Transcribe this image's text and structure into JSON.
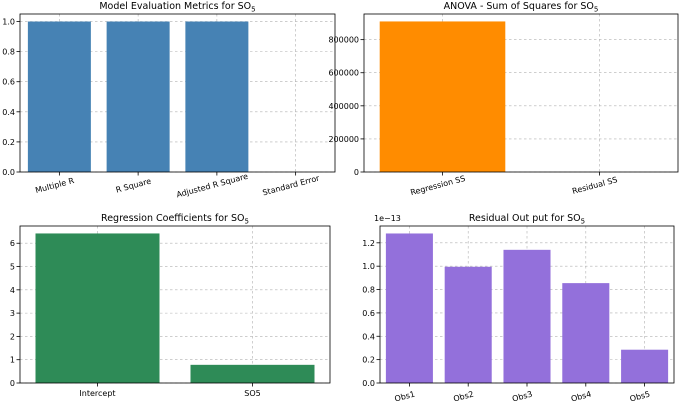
{
  "chart_data": [
    {
      "type": "bar",
      "title": "Model Evaluation Metrics for SO",
      "title_sub": "5",
      "categories": [
        "Multiple R",
        "R Square",
        "Adjusted R Square",
        "Standard Error"
      ],
      "values": [
        1.0,
        1.0,
        1.0,
        0.0
      ],
      "ylim": [
        0,
        1.05
      ],
      "yticks": [
        0.0,
        0.2,
        0.4,
        0.6,
        0.8,
        1.0
      ],
      "ytick_labels": [
        "0.0",
        "0.2",
        "0.4",
        "0.6",
        "0.8",
        "1.0"
      ],
      "rotate_xlabels": true,
      "grid": true,
      "color": "#4682b4"
    },
    {
      "type": "bar",
      "title": "ANOVA - Sum of Squares for SO",
      "title_sub": "5",
      "categories": [
        "Regression SS",
        "Residual SS"
      ],
      "values": [
        910000,
        0
      ],
      "ylim": [
        0,
        955000
      ],
      "yticks": [
        0,
        200000,
        400000,
        600000,
        800000
      ],
      "ytick_labels": [
        "0",
        "200000",
        "400000",
        "600000",
        "800000"
      ],
      "rotate_xlabels": true,
      "grid": true,
      "color": "#ff8c00"
    },
    {
      "type": "bar",
      "title": "Regression Coefficients for SO",
      "title_sub": "5",
      "categories": [
        "Intercept",
        "SO5"
      ],
      "values": [
        6.42,
        0.78
      ],
      "ylim": [
        0,
        6.74
      ],
      "yticks": [
        0,
        1,
        2,
        3,
        4,
        5,
        6
      ],
      "ytick_labels": [
        "0",
        "1",
        "2",
        "3",
        "4",
        "5",
        "6"
      ],
      "rotate_xlabels": false,
      "grid": true,
      "color": "#2e8b57"
    },
    {
      "type": "bar",
      "title": "Residual Out put  for SO",
      "title_sub": "5",
      "categories": [
        "Obs1",
        "Obs2",
        "Obs3",
        "Obs4",
        "Obs5"
      ],
      "values": [
        1.28,
        0.995,
        1.14,
        0.855,
        0.285
      ],
      "scale_label": "1e−13",
      "ylim": [
        0,
        1.344
      ],
      "yticks": [
        0.0,
        0.2,
        0.4,
        0.6,
        0.8,
        1.0,
        1.2
      ],
      "ytick_labels": [
        "0.0",
        "0.2",
        "0.4",
        "0.6",
        "0.8",
        "1.0",
        "1.2"
      ],
      "rotate_xlabels": true,
      "grid": true,
      "color": "#9370db"
    }
  ]
}
